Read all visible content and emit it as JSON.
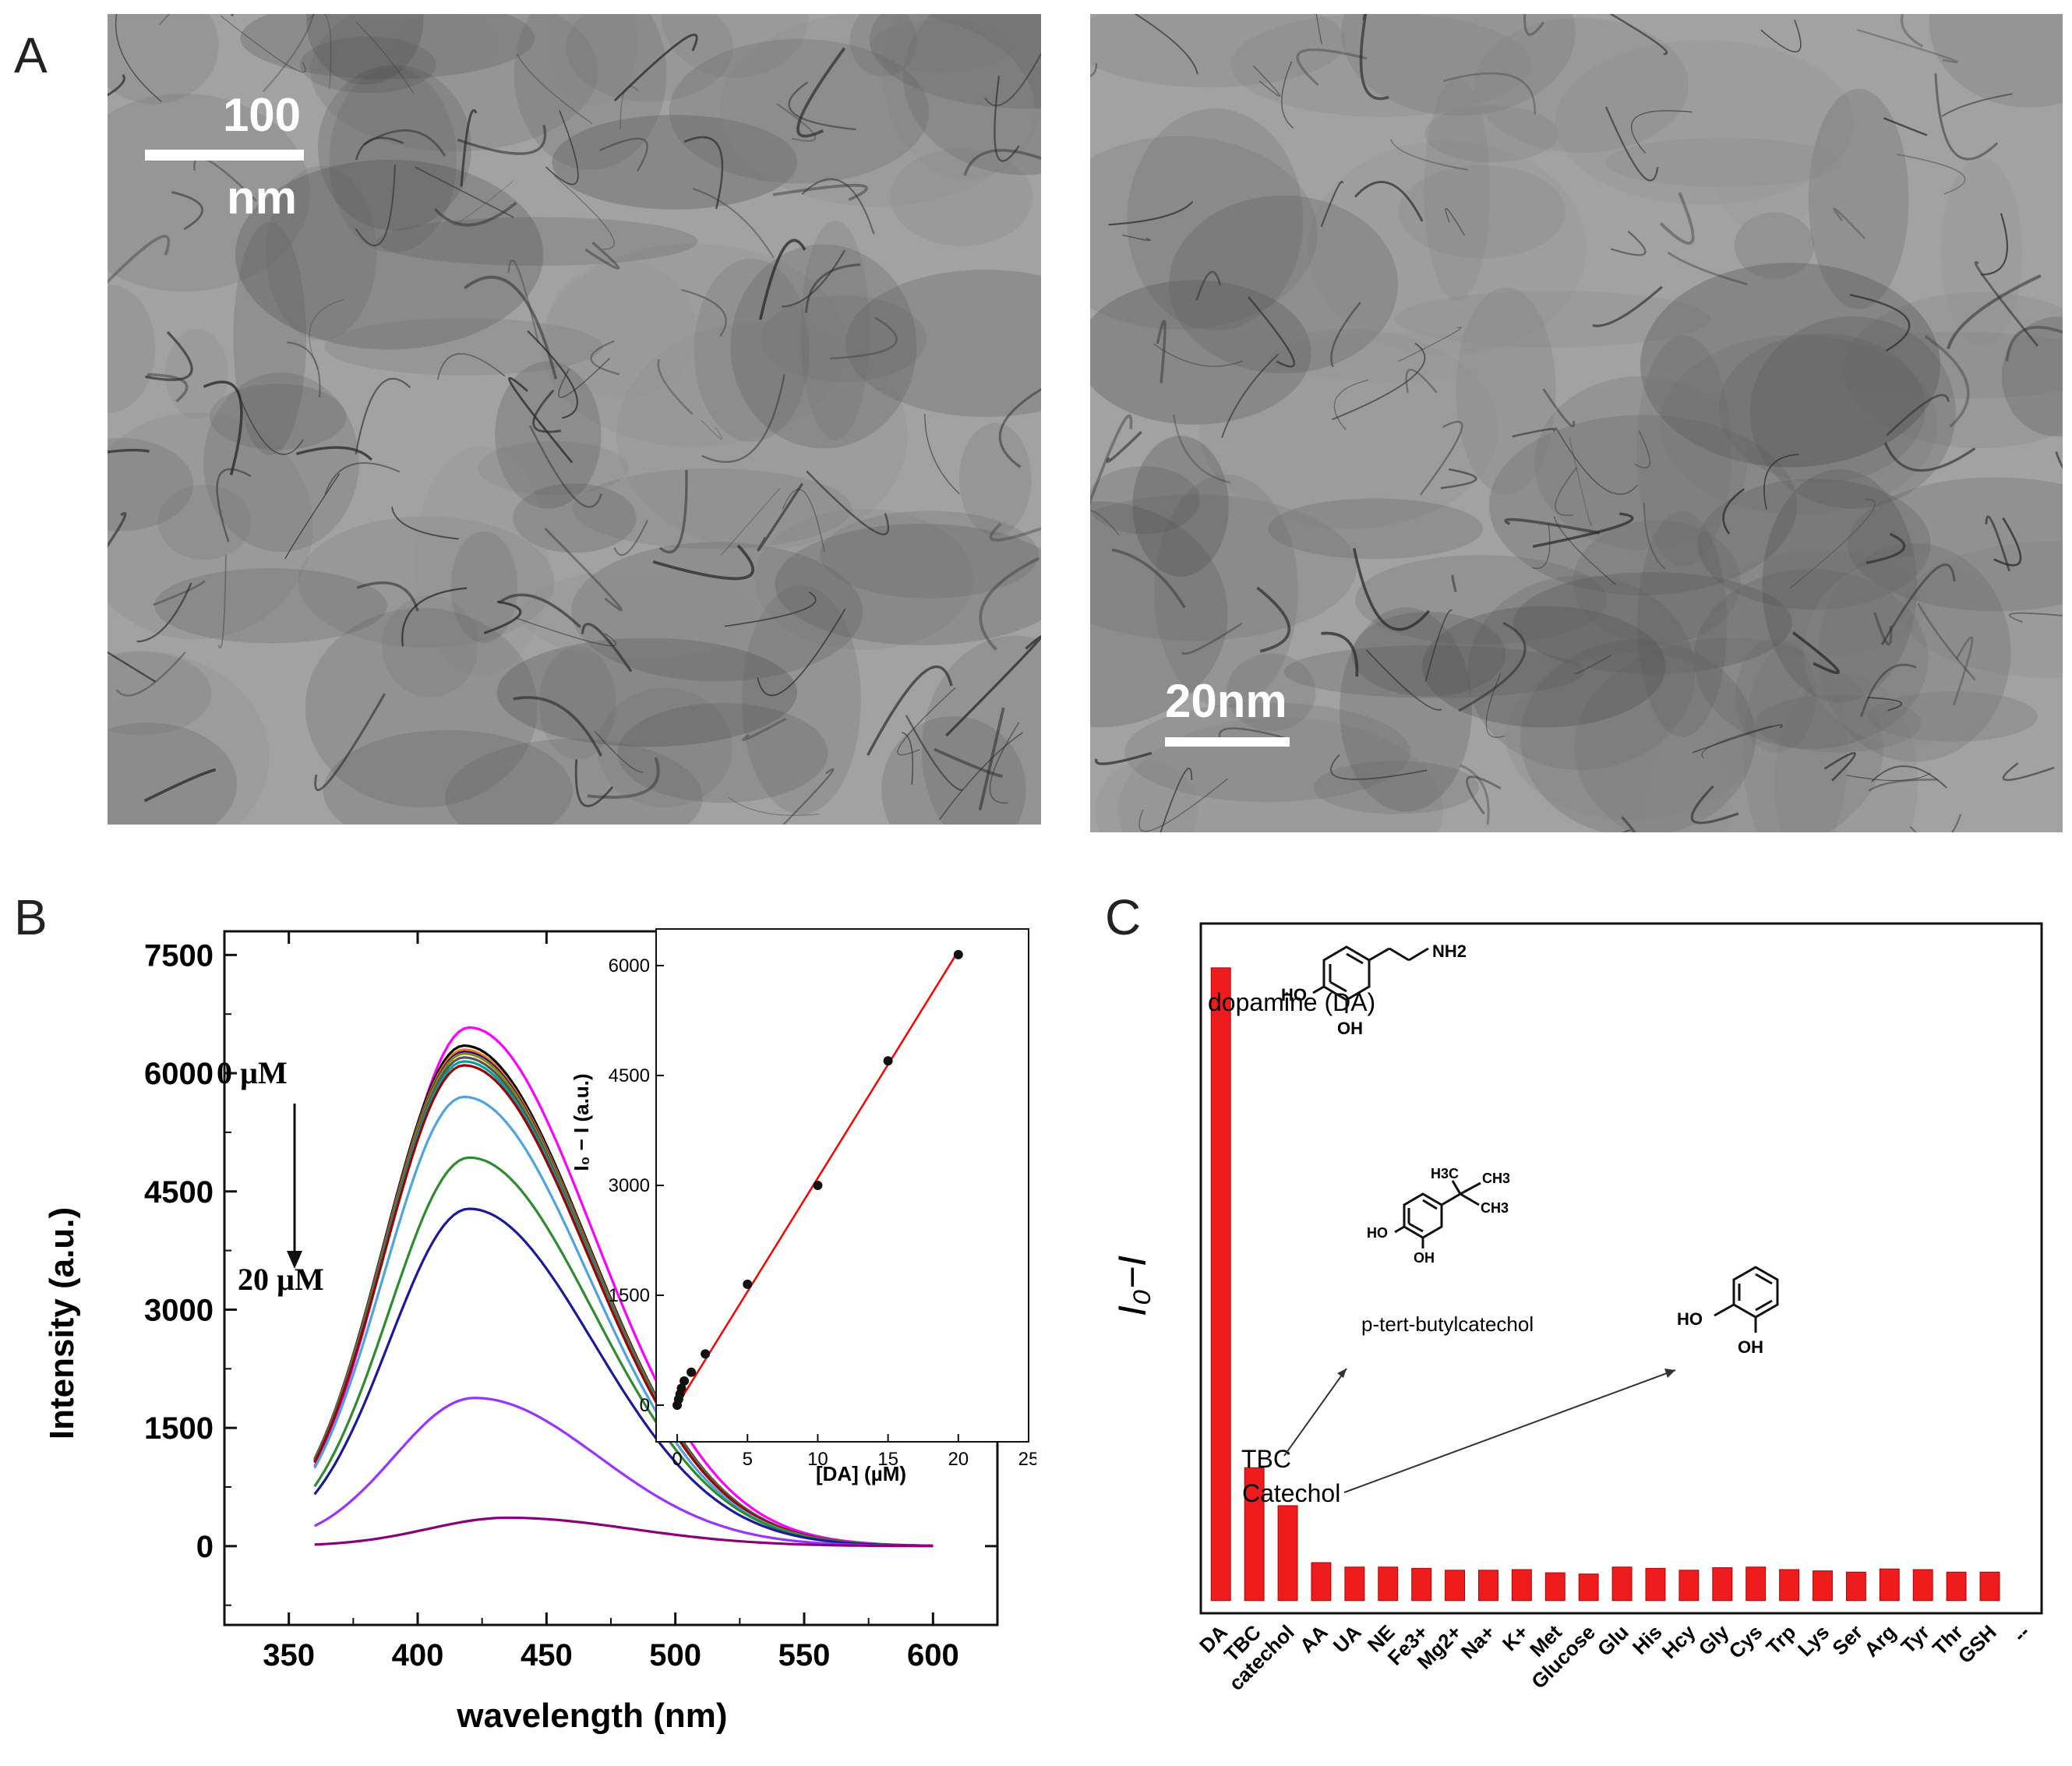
{
  "panels": {
    "a": "A",
    "b": "B",
    "c": "C"
  },
  "micrographs": [
    {
      "scale_value": "100",
      "scale_unit": "nm"
    },
    {
      "scale_label": "20nm"
    }
  ],
  "colors": {
    "accent_red": "#ee1c1c",
    "fit_line": "#ff0000",
    "spectra": [
      "#ff00ff",
      "#000000",
      "#ff7a00",
      "#0000cd",
      "#8b8b00",
      "#555555",
      "#00a0a0",
      "#a00000",
      "#4fa3e0",
      "#2e8b2e",
      "#1a1a9a",
      "#9933ff",
      "#8a007a"
    ]
  },
  "chart_data": [
    {
      "type": "line",
      "xlabel": "wavelength (nm)",
      "ylabel": "Intensity (a.u.)",
      "xlim": [
        325,
        625
      ],
      "ylim": [
        -1000,
        7800
      ],
      "xticks": [
        "350",
        "400",
        "450",
        "500",
        "550",
        "600"
      ],
      "yticks": [
        "0",
        "1500",
        "3000",
        "4500",
        "6000",
        "7500"
      ],
      "annotation_top": "0 µM",
      "annotation_bottom": "20 µM",
      "grid": false,
      "x_range": [
        360,
        600
      ],
      "series": [
        {
          "peak_x": 420,
          "peak": 6580,
          "start": 700
        },
        {
          "peak_x": 418,
          "peak": 6350,
          "start": 760
        },
        {
          "peak_x": 418,
          "peak": 6300,
          "start": 740
        },
        {
          "peak_x": 418,
          "peak": 6270,
          "start": 740
        },
        {
          "peak_x": 418,
          "peak": 6250,
          "start": 730
        },
        {
          "peak_x": 418,
          "peak": 6200,
          "start": 720
        },
        {
          "peak_x": 418,
          "peak": 6150,
          "start": 710
        },
        {
          "peak_x": 418,
          "peak": 6100,
          "start": 700
        },
        {
          "peak_x": 418,
          "peak": 5700,
          "start": 680
        },
        {
          "peak_x": 420,
          "peak": 4930,
          "start": 150
        },
        {
          "peak_x": 420,
          "peak": 4280,
          "start": 130
        },
        {
          "peak_x": 422,
          "peak": 1880,
          "start": 60
        },
        {
          "peak_x": 435,
          "peak": 360,
          "start": 20
        }
      ],
      "inset": {
        "type": "scatter",
        "xlabel": "[DA] (µM)",
        "ylabel": "I₀ − I (a.u.)",
        "xlim": [
          -1.5,
          25
        ],
        "ylim": [
          -500,
          6500
        ],
        "xticks": [
          "0",
          "5",
          "10",
          "15",
          "20",
          "25"
        ],
        "yticks": [
          "0",
          "1500",
          "3000",
          "4500",
          "6000"
        ],
        "x": [
          0,
          0.1,
          0.2,
          0.3,
          0.5,
          1,
          2,
          5,
          10,
          15,
          20
        ],
        "y": [
          0,
          80,
          150,
          230,
          330,
          450,
          700,
          1650,
          3000,
          4700,
          6150
        ],
        "fit": {
          "x": [
            0,
            20
          ],
          "y": [
            0,
            6200
          ]
        }
      }
    },
    {
      "type": "bar",
      "ylabel": "I₀−I",
      "categories": [
        "DA",
        "TBC",
        "catechol",
        "AA",
        "UA",
        "NE",
        "Fe3+",
        "Mg2+",
        "Na+",
        "K+",
        "Met",
        "Glucose",
        "Glu",
        "His",
        "Hcy",
        "Gly",
        "Cys",
        "Trp",
        "Lys",
        "Ser",
        "Arg",
        "Tyr",
        "Thr",
        "GSH",
        "--"
      ],
      "values": [
        100,
        21,
        15,
        6.0,
        5.3,
        5.3,
        5.1,
        4.8,
        4.8,
        4.9,
        4.4,
        4.2,
        5.3,
        5.1,
        4.8,
        5.2,
        5.3,
        4.9,
        4.7,
        4.5,
        5.0,
        4.9,
        4.5,
        4.5,
        0
      ],
      "ylim": [
        -2,
        107
      ],
      "labels": {
        "da": "dopamine (DA)",
        "tbc": "TBC",
        "catechol": "Catechol",
        "tbc_name": "p-tert-butylcatechol"
      },
      "structures": {
        "dopamine": {
          "nh2": "NH2",
          "ho": "HO",
          "oh": "OH"
        },
        "tbc": {
          "h3c": "H3C",
          "ch3_top": "CH3",
          "ch3_bottom": "CH3",
          "ho": "HO",
          "oh": "OH"
        },
        "catechol": {
          "ho": "HO",
          "oh": "OH"
        }
      }
    }
  ]
}
